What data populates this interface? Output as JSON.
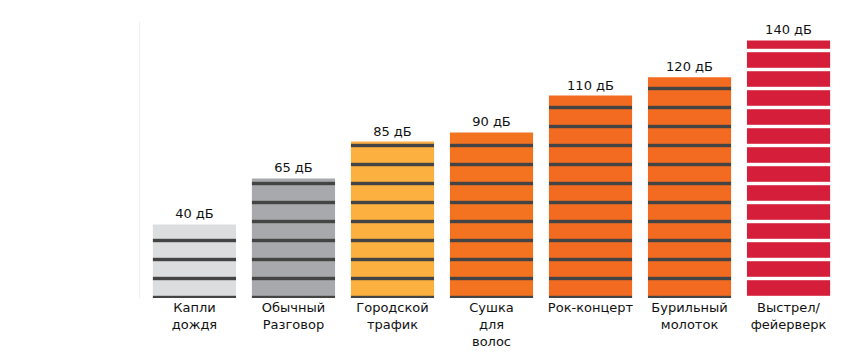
{
  "chart_data": {
    "type": "bar",
    "categories": [
      "Капли дождя",
      "Обычный Разговор",
      "Городской трафик",
      "Сушка для волос",
      "Рок-концерт",
      "Бурильный молоток",
      "Выстрел/ фейерверк"
    ],
    "values": [
      40,
      65,
      85,
      90,
      110,
      120,
      140
    ],
    "value_labels": [
      "40 дБ",
      "65 дБ",
      "85 дБ",
      "90 дБ",
      "110 дБ",
      "120 дБ",
      "140 дБ"
    ],
    "colors": [
      "#dcdddf",
      "#a7a9ac",
      "#fbb040",
      "#f47321",
      "#f36b21",
      "#f36b21",
      "#d51f3a"
    ],
    "data_labels": true,
    "tick_labels": "x",
    "grid": false,
    "ylim": [
      0,
      150
    ]
  }
}
